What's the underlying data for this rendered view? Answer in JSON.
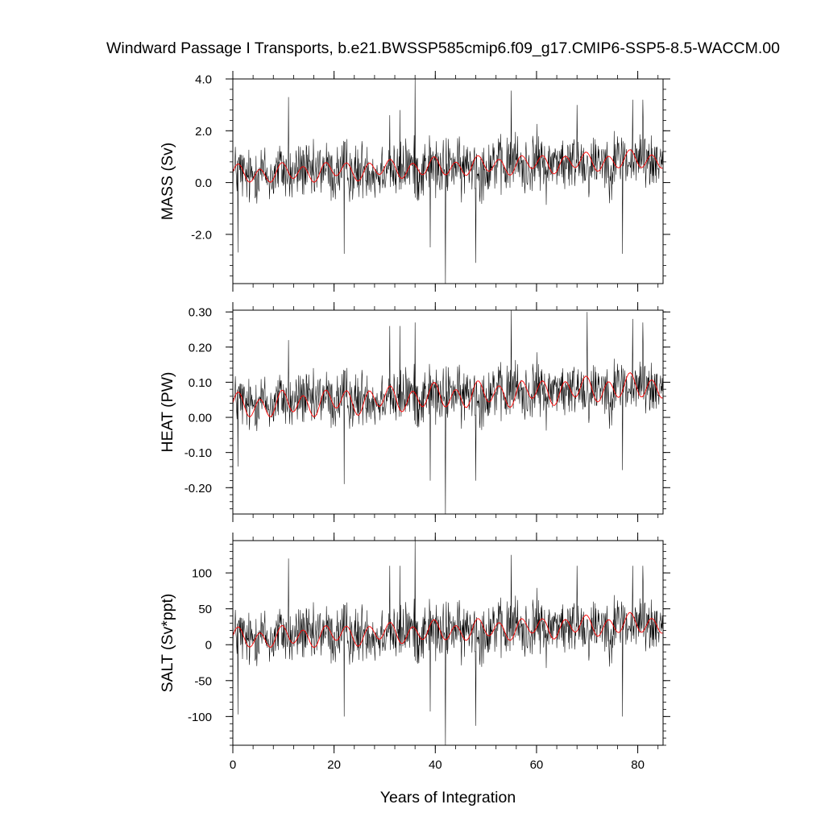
{
  "figure": {
    "title": "Windward Passage I Transports, b.e21.BWSSP585cmip6.f09_g17.CMIP6-SSP5-8.5-WACCM.00",
    "xlabel": "Years of Integration"
  },
  "chart_data": [
    {
      "type": "line",
      "ylabel": "MASS (Sv)",
      "xlim": [
        0,
        85
      ],
      "ylim": [
        -3.9,
        4.0
      ],
      "yticks": [
        4.0,
        2.0,
        0.0,
        -2.0
      ],
      "ytick_labels": [
        "4.0",
        "2.0",
        "0.0",
        "-2.0"
      ],
      "xticks": [
        0,
        20,
        40,
        60,
        80
      ],
      "xtick_labels": [
        "0",
        "20",
        "40",
        "60",
        "80"
      ],
      "grid": false,
      "series": [
        {
          "color": "#000000",
          "style": "monthly",
          "trend": [
            0.3,
            0.9
          ],
          "amp": 0.7,
          "spikes": [
            [
              1,
              -2.7
            ],
            [
              11,
              3.3
            ],
            [
              22,
              -2.75
            ],
            [
              31,
              2.6
            ],
            [
              33,
              2.8
            ],
            [
              36,
              4.0
            ],
            [
              39,
              -2.5
            ],
            [
              42,
              -3.9
            ],
            [
              48,
              -3.1
            ],
            [
              55,
              3.55
            ],
            [
              68,
              3.0
            ],
            [
              77,
              -2.75
            ],
            [
              79,
              3.2
            ],
            [
              81,
              3.2
            ]
          ]
        },
        {
          "color": "#ff0000",
          "style": "smooth",
          "trend": [
            0.3,
            0.9
          ],
          "amp": 0.3
        }
      ]
    },
    {
      "type": "line",
      "ylabel": "HEAT (PW)",
      "xlim": [
        0,
        85
      ],
      "ylim": [
        -0.275,
        0.305
      ],
      "yticks": [
        0.3,
        0.2,
        0.1,
        0.0,
        -0.1,
        -0.2
      ],
      "ytick_labels": [
        "0.30",
        "0.20",
        "0.10",
        "0.00",
        "-0.10",
        "-0.20"
      ],
      "xticks": [
        0,
        20,
        40,
        60,
        80
      ],
      "xtick_labels": [
        "0",
        "20",
        "40",
        "60",
        "80"
      ],
      "grid": false,
      "series": [
        {
          "color": "#000000",
          "style": "monthly",
          "trend": [
            0.04,
            0.09
          ],
          "amp": 0.05,
          "spikes": [
            [
              1,
              -0.14
            ],
            [
              11,
              0.22
            ],
            [
              22,
              -0.19
            ],
            [
              31,
              0.26
            ],
            [
              33,
              0.26
            ],
            [
              36,
              0.27
            ],
            [
              39,
              -0.18
            ],
            [
              42,
              -0.275
            ],
            [
              48,
              -0.18
            ],
            [
              55,
              0.305
            ],
            [
              70,
              0.3
            ],
            [
              77,
              -0.15
            ],
            [
              79,
              0.28
            ],
            [
              81,
              0.27
            ]
          ]
        },
        {
          "color": "#ff0000",
          "style": "smooth",
          "trend": [
            0.03,
            0.09
          ],
          "amp": 0.03
        }
      ]
    },
    {
      "type": "line",
      "ylabel": "SALT (Sv*ppt)",
      "xlim": [
        0,
        85
      ],
      "ylim": [
        -140,
        145
      ],
      "yticks": [
        100,
        50,
        0,
        -50,
        -100
      ],
      "ytick_labels": [
        "100",
        "50",
        "0",
        "-50",
        "-100"
      ],
      "xticks": [
        0,
        20,
        40,
        60,
        80
      ],
      "xtick_labels": [
        "0",
        "20",
        "40",
        "60",
        "80"
      ],
      "grid": false,
      "series": [
        {
          "color": "#000000",
          "style": "monthly",
          "trend": [
            10,
            30
          ],
          "amp": 25,
          "spikes": [
            [
              1,
              -97
            ],
            [
              11,
              120
            ],
            [
              22,
              -100
            ],
            [
              31,
              110
            ],
            [
              33,
              110
            ],
            [
              36,
              145
            ],
            [
              39,
              -93
            ],
            [
              42,
              -140
            ],
            [
              48,
              -113
            ],
            [
              55,
              125
            ],
            [
              68,
              110
            ],
            [
              77,
              -100
            ],
            [
              79,
              110
            ],
            [
              81,
              110
            ]
          ]
        },
        {
          "color": "#ff0000",
          "style": "smooth",
          "trend": [
            8,
            30
          ],
          "amp": 12
        }
      ]
    }
  ]
}
